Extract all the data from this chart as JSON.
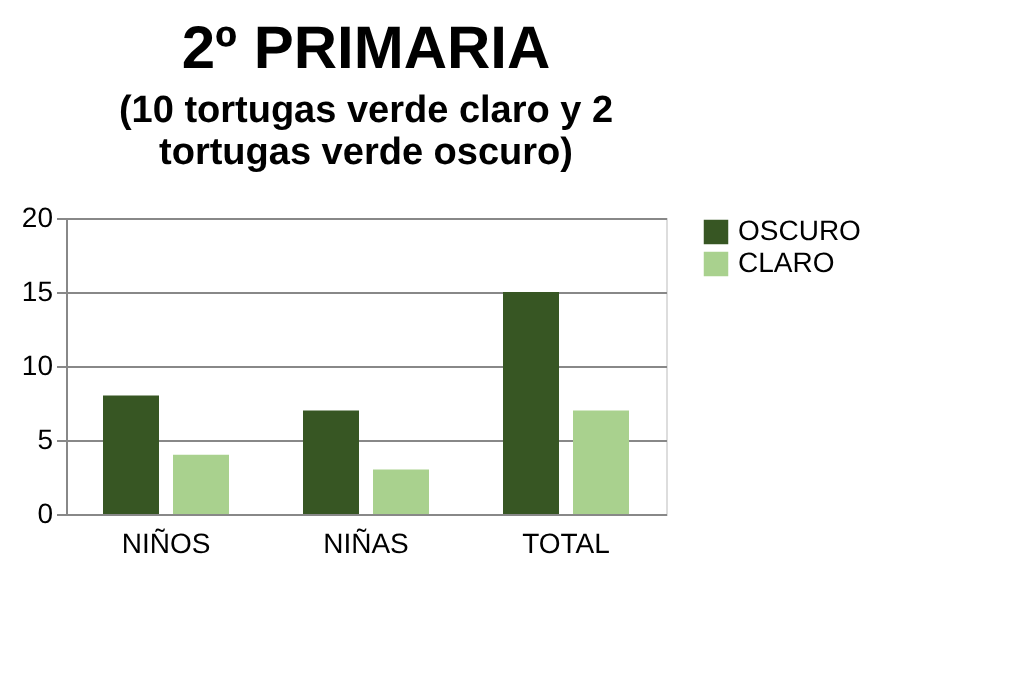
{
  "chart_data": {
    "type": "bar",
    "title": "2º PRIMARIA",
    "subtitle": "(10 tortugas verde claro y 2 tortugas verde oscuro)",
    "categories": [
      "NIÑOS",
      "NIÑAS",
      "TOTAL"
    ],
    "series": [
      {
        "name": "OSCURO",
        "color": "#375623",
        "values": [
          8,
          7,
          15
        ]
      },
      {
        "name": "CLARO",
        "color": "#a9d18e",
        "values": [
          4,
          3,
          7
        ]
      }
    ],
    "ylim": [
      0,
      20
    ],
    "yticks": [
      0,
      5,
      10,
      15,
      20
    ],
    "grid": "y",
    "legend": "right"
  }
}
